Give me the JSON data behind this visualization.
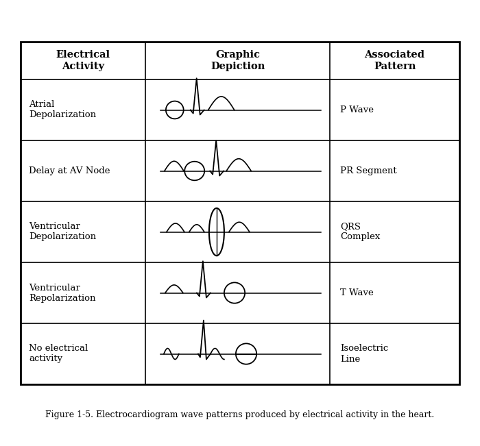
{
  "title": "Figure 1-5. Electrocardiogram wave patterns produced by electrical activity in the heart.",
  "col_headers": [
    "Electrical\nActivity",
    "Graphic\nDepiction",
    "Associated\nPattern"
  ],
  "row_labels": [
    "Atrial\nDepolarization",
    "Delay at AV Node",
    "Ventricular\nDepolarization",
    "Ventricular\nRepolarization",
    "No electrical\nactivity"
  ],
  "pattern_labels": [
    "P Wave",
    "PR Segment",
    "QRS\nComplex",
    "T Wave",
    "Isoelectric\nLine"
  ],
  "background_color": "#ffffff",
  "text_color": "#000000",
  "header_fontsize": 10.5,
  "body_fontsize": 9.5,
  "caption_fontsize": 9
}
